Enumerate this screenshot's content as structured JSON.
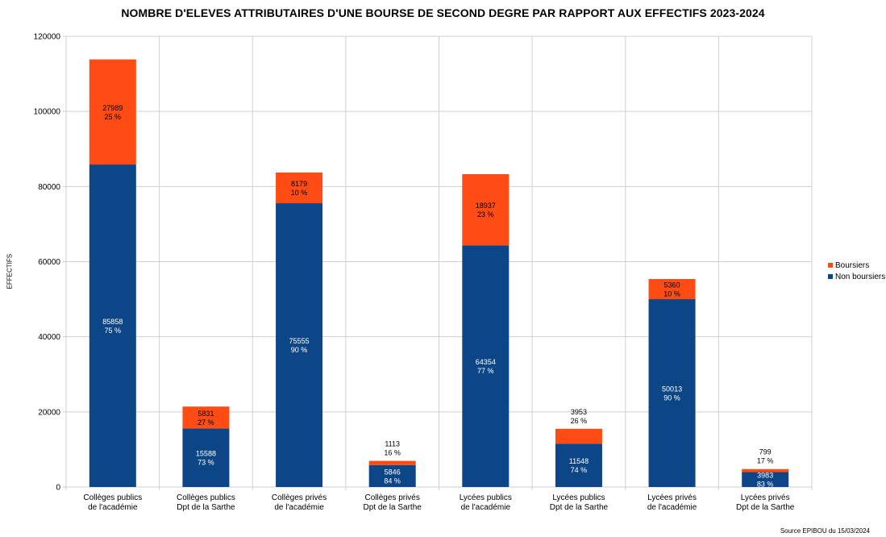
{
  "chart_data": {
    "type": "bar",
    "stacked": true,
    "title": "NOMBRE D'ELEVES ATTRIBUTAIRES D'UNE BOURSE DE SECOND DEGRE PAR RAPPORT AUX EFFECTIFS 2023-2024",
    "ylabel": "EFFECTIFS",
    "xlabel": "",
    "ylim": [
      0,
      120000
    ],
    "yticks": [
      "0",
      "20000",
      "40000",
      "60000",
      "80000",
      "100000",
      "120000"
    ],
    "grid": true,
    "legend_position": "right",
    "categories": [
      [
        "Collèges publics",
        "de l'académie"
      ],
      [
        "Collèges publics",
        "Dpt de la Sarthe"
      ],
      [
        "Collèges privés",
        "de l'académie"
      ],
      [
        "Collèges privés",
        "Dpt de la Sarthe"
      ],
      [
        "Lycées publics",
        "de l'académie"
      ],
      [
        "Lycées publics",
        "Dpt de la Sarthe"
      ],
      [
        "Lycées privés",
        "de l'académie"
      ],
      [
        "Lycées privés",
        "Dpt de la Sarthe"
      ]
    ],
    "series": [
      {
        "name": "Non boursiers",
        "color": "#0d4687",
        "values": [
          85858,
          15588,
          75555,
          5846,
          64354,
          11548,
          50013,
          3983
        ],
        "labels": [
          "75 %",
          "73 %",
          "90 %",
          "84 %",
          "77 %",
          "74 %",
          "90 %",
          "83 %"
        ]
      },
      {
        "name": "Boursiers",
        "color": "#ff4b14",
        "values": [
          27989,
          5831,
          8179,
          1113,
          18937,
          3953,
          5360,
          799
        ],
        "labels": [
          "25 %",
          "27 %",
          "10 %",
          "16 %",
          "23 %",
          "26 %",
          "10 %",
          "17 %"
        ]
      }
    ],
    "legend": [
      "Boursiers",
      "Non boursiers"
    ]
  },
  "source": "Source EPIBOU du 15/03/2024"
}
